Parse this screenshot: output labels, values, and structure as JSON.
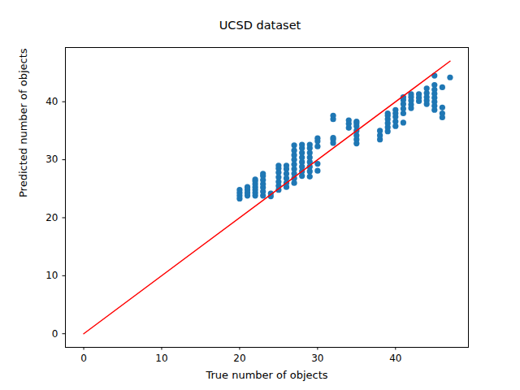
{
  "chart_data": {
    "type": "scatter",
    "title": "UCSD dataset",
    "x_label": "True number of objects",
    "y_label": "Predicted number of objects",
    "xlim": [
      -2.35,
      49.35
    ],
    "ylim": [
      -2.35,
      49.35
    ],
    "xticks": [
      0,
      10,
      20,
      30,
      40
    ],
    "yticks": [
      0,
      10,
      20,
      30,
      40
    ],
    "grid": false,
    "series": [
      {
        "type": "scatter",
        "color": "#1f77b4",
        "marker": "circle",
        "x": [
          20,
          20,
          20,
          20,
          21,
          21,
          21,
          21,
          22,
          22,
          22,
          22,
          22,
          22,
          22,
          23,
          23,
          23,
          23,
          23,
          23,
          23,
          24,
          24,
          25,
          25,
          25,
          25,
          25,
          25,
          25,
          26,
          26,
          26,
          26,
          26,
          26,
          27,
          27,
          27,
          27,
          27,
          27,
          27,
          27,
          27,
          28,
          28,
          28,
          28,
          28,
          28,
          28,
          28,
          29,
          29,
          29,
          29,
          29,
          29,
          29,
          29,
          30,
          30,
          30,
          30,
          30,
          32,
          32,
          32,
          32,
          32,
          34,
          34,
          34,
          35,
          35,
          35,
          35,
          35,
          35,
          35,
          38,
          38,
          38,
          39,
          39,
          39,
          39,
          39,
          39,
          40,
          40,
          40,
          40,
          40,
          41,
          41,
          41,
          41,
          41,
          41,
          42,
          42,
          42,
          42,
          42,
          43,
          43,
          43,
          44,
          44,
          44,
          44,
          44,
          45,
          45,
          45,
          45,
          45,
          45,
          45,
          45,
          46,
          46,
          46,
          46,
          47
        ],
        "y": [
          23.3,
          23.8,
          24.3,
          24.8,
          23.8,
          24.3,
          24.8,
          25.3,
          23.8,
          24.3,
          24.8,
          25.3,
          25.8,
          26.3,
          26.6,
          23.8,
          24.5,
          25.2,
          25.8,
          26.5,
          27.2,
          27.6,
          23.7,
          24.2,
          24.8,
          25.5,
          26.2,
          27.0,
          27.8,
          28.5,
          29.0,
          25.3,
          26.0,
          26.8,
          27.6,
          28.4,
          29.0,
          26.0,
          26.8,
          27.6,
          28.4,
          29.2,
          30.0,
          30.8,
          31.6,
          32.5,
          27.2,
          28.0,
          28.8,
          29.6,
          30.4,
          31.2,
          32.0,
          32.6,
          27.1,
          28.0,
          28.8,
          29.6,
          30.4,
          31.2,
          32.0,
          32.6,
          28.1,
          29.3,
          32.3,
          33.2,
          33.7,
          32.9,
          33.5,
          33.8,
          37.0,
          37.6,
          35.5,
          36.2,
          36.8,
          32.8,
          33.5,
          34.2,
          35.0,
          35.8,
          36.3,
          36.6,
          33.5,
          34.2,
          35.0,
          34.9,
          35.6,
          36.3,
          37.0,
          37.6,
          38.0,
          35.8,
          36.6,
          37.4,
          38.0,
          38.6,
          36.4,
          38.0,
          38.8,
          39.6,
          40.3,
          40.8,
          38.9,
          39.5,
          40.2,
          40.8,
          41.3,
          40.1,
          40.7,
          41.3,
          39.6,
          40.2,
          40.8,
          41.5,
          42.3,
          38.6,
          39.3,
          40.0,
          40.7,
          41.4,
          42.1,
          42.9,
          44.5,
          37.3,
          38.0,
          39.0,
          42.5,
          44.2
        ]
      },
      {
        "type": "line",
        "color": "red",
        "line_style": "solid",
        "x": [
          0,
          47
        ],
        "y": [
          0,
          47
        ]
      }
    ]
  }
}
